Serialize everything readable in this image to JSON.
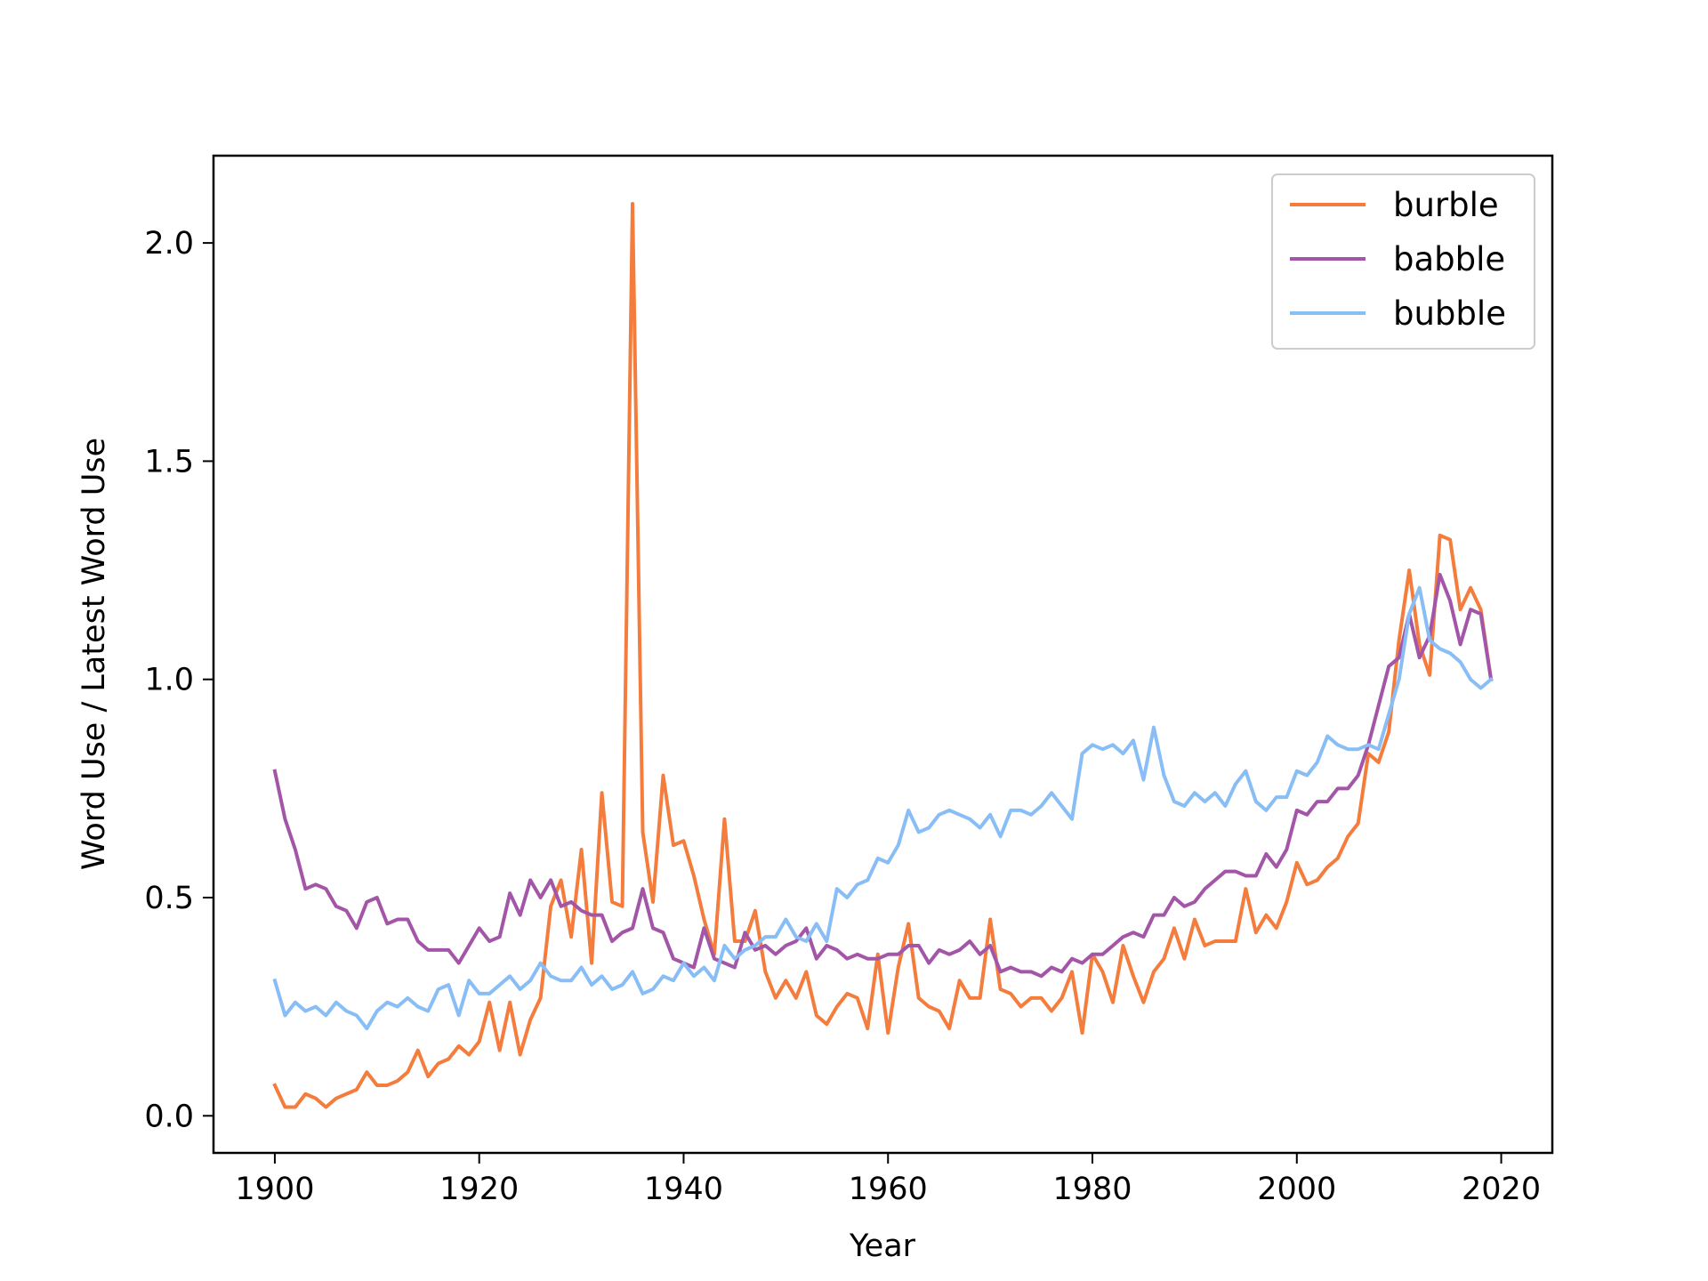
{
  "chart_data": {
    "type": "line",
    "title": "",
    "xlabel": "Year",
    "ylabel": "Word Use / Latest Word Use",
    "xlim": [
      1894,
      2025
    ],
    "ylim": [
      -0.085,
      2.2
    ],
    "xticks": [
      1900,
      1920,
      1940,
      1960,
      1980,
      2000,
      2020
    ],
    "yticks": [
      0.0,
      0.5,
      1.0,
      1.5,
      2.0
    ],
    "ytick_labels": [
      "0.0",
      "0.5",
      "1.0",
      "1.5",
      "2.0"
    ],
    "legend_position": "top-right",
    "grid": false,
    "x_start": 1900,
    "x_end": 2019,
    "series": [
      {
        "name": "burble",
        "color": "#f47c3c",
        "values": [
          0.07,
          0.02,
          0.02,
          0.05,
          0.04,
          0.02,
          0.04,
          0.05,
          0.06,
          0.1,
          0.07,
          0.07,
          0.08,
          0.1,
          0.15,
          0.09,
          0.12,
          0.13,
          0.16,
          0.14,
          0.17,
          0.26,
          0.15,
          0.26,
          0.14,
          0.22,
          0.27,
          0.48,
          0.54,
          0.41,
          0.61,
          0.35,
          0.74,
          0.49,
          0.48,
          2.09,
          0.65,
          0.49,
          0.78,
          0.62,
          0.63,
          0.55,
          0.45,
          0.37,
          0.68,
          0.4,
          0.4,
          0.47,
          0.33,
          0.27,
          0.31,
          0.27,
          0.33,
          0.23,
          0.21,
          0.25,
          0.28,
          0.27,
          0.2,
          0.37,
          0.19,
          0.34,
          0.44,
          0.27,
          0.25,
          0.24,
          0.2,
          0.31,
          0.27,
          0.27,
          0.45,
          0.29,
          0.28,
          0.25,
          0.27,
          0.27,
          0.24,
          0.27,
          0.33,
          0.19,
          0.37,
          0.33,
          0.26,
          0.39,
          0.32,
          0.26,
          0.33,
          0.36,
          0.43,
          0.36,
          0.45,
          0.39,
          0.4,
          0.4,
          0.4,
          0.52,
          0.42,
          0.46,
          0.43,
          0.49,
          0.58,
          0.53,
          0.54,
          0.57,
          0.59,
          0.64,
          0.67,
          0.83,
          0.81,
          0.88,
          1.09,
          1.25,
          1.08,
          1.01,
          1.33,
          1.32,
          1.16,
          1.21,
          1.16,
          1.0
        ]
      },
      {
        "name": "babble",
        "color": "#a356a8",
        "values": [
          0.79,
          0.68,
          0.61,
          0.52,
          0.53,
          0.52,
          0.48,
          0.47,
          0.43,
          0.49,
          0.5,
          0.44,
          0.45,
          0.45,
          0.4,
          0.38,
          0.38,
          0.38,
          0.35,
          0.39,
          0.43,
          0.4,
          0.41,
          0.51,
          0.46,
          0.54,
          0.5,
          0.54,
          0.48,
          0.49,
          0.47,
          0.46,
          0.46,
          0.4,
          0.42,
          0.43,
          0.52,
          0.43,
          0.42,
          0.36,
          0.35,
          0.34,
          0.43,
          0.36,
          0.35,
          0.34,
          0.42,
          0.38,
          0.39,
          0.37,
          0.39,
          0.4,
          0.43,
          0.36,
          0.39,
          0.38,
          0.36,
          0.37,
          0.36,
          0.36,
          0.37,
          0.37,
          0.39,
          0.39,
          0.35,
          0.38,
          0.37,
          0.38,
          0.4,
          0.37,
          0.39,
          0.33,
          0.34,
          0.33,
          0.33,
          0.32,
          0.34,
          0.33,
          0.36,
          0.35,
          0.37,
          0.37,
          0.39,
          0.41,
          0.42,
          0.41,
          0.46,
          0.46,
          0.5,
          0.48,
          0.49,
          0.52,
          0.54,
          0.56,
          0.56,
          0.55,
          0.55,
          0.6,
          0.57,
          0.61,
          0.7,
          0.69,
          0.72,
          0.72,
          0.75,
          0.75,
          0.78,
          0.85,
          0.94,
          1.03,
          1.05,
          1.15,
          1.05,
          1.1,
          1.24,
          1.18,
          1.08,
          1.16,
          1.15,
          1.0
        ]
      },
      {
        "name": "bubble",
        "color": "#88bef5",
        "values": [
          0.31,
          0.23,
          0.26,
          0.24,
          0.25,
          0.23,
          0.26,
          0.24,
          0.23,
          0.2,
          0.24,
          0.26,
          0.25,
          0.27,
          0.25,
          0.24,
          0.29,
          0.3,
          0.23,
          0.31,
          0.28,
          0.28,
          0.3,
          0.32,
          0.29,
          0.31,
          0.35,
          0.32,
          0.31,
          0.31,
          0.34,
          0.3,
          0.32,
          0.29,
          0.3,
          0.33,
          0.28,
          0.29,
          0.32,
          0.31,
          0.35,
          0.32,
          0.34,
          0.31,
          0.39,
          0.36,
          0.38,
          0.39,
          0.41,
          0.41,
          0.45,
          0.41,
          0.4,
          0.44,
          0.4,
          0.52,
          0.5,
          0.53,
          0.54,
          0.59,
          0.58,
          0.62,
          0.7,
          0.65,
          0.66,
          0.69,
          0.7,
          0.69,
          0.68,
          0.66,
          0.69,
          0.64,
          0.7,
          0.7,
          0.69,
          0.71,
          0.74,
          0.71,
          0.68,
          0.83,
          0.85,
          0.84,
          0.85,
          0.83,
          0.86,
          0.77,
          0.89,
          0.78,
          0.72,
          0.71,
          0.74,
          0.72,
          0.74,
          0.71,
          0.76,
          0.79,
          0.72,
          0.7,
          0.73,
          0.73,
          0.79,
          0.78,
          0.81,
          0.87,
          0.85,
          0.84,
          0.84,
          0.85,
          0.84,
          0.92,
          1.0,
          1.15,
          1.21,
          1.09,
          1.07,
          1.06,
          1.04,
          1.0,
          0.98,
          1.0
        ]
      }
    ]
  }
}
